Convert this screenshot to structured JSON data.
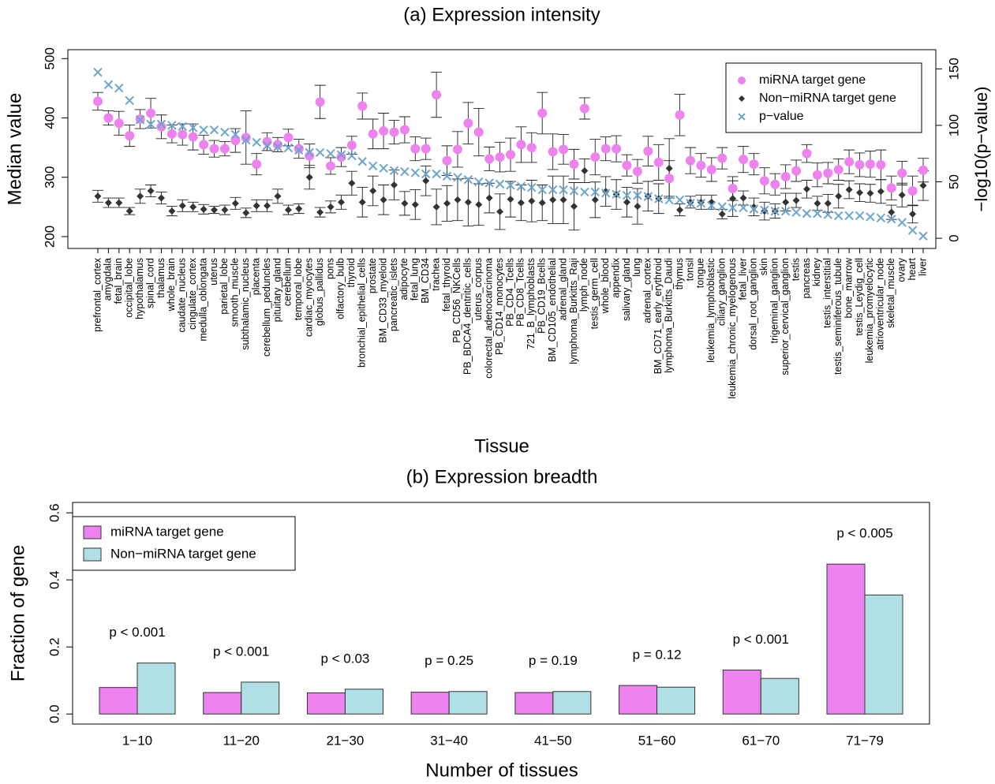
{
  "chart_data": [
    {
      "type": "scatter",
      "title": "(a) Expression intensity",
      "xlabel": "Tissue",
      "ylabel": "Median value",
      "y2label": "−log10(p−value)",
      "categories": [
        "prefrontal_cortex",
        "amygdala",
        "fetal_brain",
        "occipital_lobe",
        "hypothalamus",
        "spinal_cord",
        "thalamus",
        "whole_brain",
        "caudate_nucleus",
        "cingulate_cortex",
        "medulla_oblongata",
        "uterus",
        "parietal_lobe",
        "smooth_muscle",
        "subthalamic_nucleus",
        "placenta",
        "cerebellum_peduncles",
        "pituitary_gland",
        "cerebellum",
        "temporal_lobe",
        "cardiac_myocytes",
        "globus_pallidus",
        "pons",
        "olfactory_bulb",
        "thyroid",
        "bronchial_epithelial_cells",
        "prostate",
        "BM_CD33_myeloid",
        "pancreatic_islets",
        "adipocyte",
        "fetal_lung",
        "BM_CD34",
        "trachea",
        "fetal_thyroid",
        "PB_CD56_NKCells",
        "PB_BDCA4_dentritic_cells",
        "uterus_corpus",
        "colorectal_adenocarcinoma",
        "PB_CD14_monocytes",
        "PB_CD4_Tcells",
        "PB_CD8_Tcells",
        "721_B_lymphoblasts",
        "PB_CD19_Bcells",
        "BM_CD105_endothelial",
        "adrenal_gland",
        "lymphoma_Burkitts_Raji",
        "lymph_node",
        "testis_germ_cell",
        "whole_blood",
        "appendix",
        "salivary_gland",
        "lung",
        "adrenal_cortex",
        "BM_CD71_early_erythroid",
        "lymphoma_Burkitts_Daudi",
        "thymus",
        "tonsil",
        "tongue",
        "leukemia_lymphoblastic",
        "ciliary_ganglion",
        "leukemia_chronic_myelogenous",
        "fetal_liver",
        "dorsal_root_ganglion",
        "skin",
        "trigeminal_ganglion",
        "superior_cervical_ganglion",
        "testis",
        "pancreas",
        "kidney",
        "testis_interstitial",
        "testis_seminiferous_tubule",
        "bone_marrow",
        "testis_Leydig_cell",
        "leukemia_promyelocytic",
        "atrioventricular_node",
        "skeletal_muscle",
        "ovary",
        "heart",
        "liver"
      ],
      "series": [
        {
          "name": "miRNA target gene",
          "color": "#ee82ee",
          "marker": "circle",
          "values": [
            428,
            400,
            391,
            370,
            398,
            408,
            385,
            373,
            372,
            368,
            355,
            348,
            348,
            362,
            367,
            322,
            360,
            355,
            367,
            348,
            336,
            427,
            319,
            334,
            354,
            420,
            373,
            378,
            376,
            380,
            348,
            348,
            439,
            328,
            347,
            391,
            376,
            331,
            334,
            338,
            355,
            350,
            408,
            343,
            347,
            322,
            416,
            334,
            348,
            348,
            320,
            310,
            344,
            325,
            298,
            405,
            328,
            320,
            313,
            332,
            281,
            330,
            322,
            294,
            288,
            301,
            311,
            340,
            304,
            307,
            313,
            326,
            321,
            322,
            321,
            282,
            307,
            277,
            312
          ],
          "errors": [
            15,
            12,
            20,
            18,
            16,
            25,
            20,
            15,
            18,
            22,
            16,
            14,
            12,
            20,
            45,
            18,
            15,
            12,
            14,
            16,
            20,
            28,
            14,
            16,
            15,
            22,
            25,
            30,
            20,
            22,
            20,
            18,
            38,
            25,
            30,
            35,
            40,
            20,
            25,
            28,
            30,
            25,
            35,
            30,
            25,
            25,
            18,
            30,
            20,
            22,
            18,
            20,
            25,
            30,
            30,
            35,
            22,
            20,
            20,
            18,
            20,
            22,
            18,
            22,
            18,
            20,
            18,
            15,
            20,
            18,
            18,
            20,
            20,
            22,
            25,
            20,
            20,
            25,
            20
          ]
        },
        {
          "name": "Non−miRNA target gene",
          "color": "#333333",
          "marker": "diamond",
          "values": [
            268,
            257,
            257,
            243,
            268,
            277,
            265,
            243,
            252,
            250,
            246,
            245,
            245,
            256,
            240,
            252,
            252,
            268,
            245,
            247,
            300,
            241,
            250,
            258,
            290,
            258,
            277,
            262,
            287,
            256,
            254,
            294,
            250,
            256,
            262,
            258,
            254,
            265,
            242,
            263,
            257,
            260,
            257,
            262,
            262,
            251,
            311,
            262,
            276,
            271,
            258,
            251,
            268,
            264,
            315,
            245,
            258,
            258,
            258,
            238,
            264,
            265,
            250,
            243,
            243,
            258,
            261,
            280,
            256,
            256,
            268,
            279,
            274,
            273,
            276,
            241,
            270,
            238,
            286
          ],
          "errors": [
            10,
            8,
            8,
            6,
            12,
            10,
            10,
            8,
            10,
            8,
            8,
            6,
            8,
            10,
            8,
            10,
            10,
            12,
            8,
            8,
            20,
            8,
            10,
            12,
            20,
            25,
            25,
            25,
            25,
            20,
            25,
            25,
            30,
            30,
            35,
            40,
            35,
            25,
            30,
            30,
            30,
            35,
            30,
            40,
            40,
            40,
            20,
            30,
            25,
            25,
            25,
            30,
            25,
            25,
            50,
            10,
            10,
            12,
            12,
            8,
            30,
            12,
            15,
            15,
            12,
            15,
            12,
            15,
            12,
            15,
            20,
            15,
            15,
            15,
            20,
            12,
            20,
            15,
            25
          ]
        },
        {
          "name": "p−value",
          "color": "#6ca6cd",
          "marker": "x",
          "axis": "y2",
          "values": [
            147,
            136,
            133,
            122,
            105,
            101,
            101,
            100,
            99,
            98,
            96,
            96,
            94,
            92,
            87,
            85,
            82,
            81,
            80,
            78,
            76,
            76,
            75,
            74,
            73,
            68,
            64,
            62,
            60,
            59,
            58,
            57,
            57,
            55,
            54,
            52,
            50,
            49,
            48,
            47,
            46,
            45,
            43,
            43,
            43,
            42,
            41,
            41,
            40,
            39,
            38,
            38,
            37,
            35,
            34,
            34,
            31,
            31,
            29,
            28,
            27,
            27,
            26,
            25,
            24,
            24,
            23,
            22,
            22,
            21,
            20,
            20,
            20,
            19,
            18,
            17,
            14,
            7,
            2
          ]
        }
      ],
      "ylim": [
        180,
        515
      ],
      "yticks": [
        200,
        300,
        400,
        500
      ],
      "y2lim": [
        -9,
        167
      ],
      "y2ticks": [
        0,
        50,
        100,
        150
      ],
      "legend": "top-right"
    },
    {
      "type": "bar",
      "title": "(b) Expression breadth",
      "xlabel": "Number of tissues",
      "ylabel": "Fraction of gene",
      "categories": [
        "1−10",
        "11−20",
        "21−30",
        "31−40",
        "41−50",
        "51−60",
        "61−70",
        "71−79"
      ],
      "series": [
        {
          "name": "miRNA target gene",
          "color": "#ee82ee",
          "values": [
            0.079,
            0.064,
            0.063,
            0.065,
            0.064,
            0.085,
            0.131,
            0.447
          ]
        },
        {
          "name": "Non−miRNA target gene",
          "color": "#b0e0e6",
          "values": [
            0.152,
            0.095,
            0.074,
            0.067,
            0.067,
            0.08,
            0.106,
            0.355
          ]
        }
      ],
      "annotations": [
        "p < 0.001",
        "p < 0.001",
        "p < 0.03",
        "p = 0.25",
        "p = 0.19",
        "p = 0.12",
        "p < 0.001",
        "p < 0.005"
      ],
      "ylim": [
        -0.03,
        0.631
      ],
      "yticks": [
        {
          "value": 0,
          "label": "0.0"
        },
        0.2,
        0.4,
        0.6
      ],
      "legend": "top-left"
    }
  ]
}
